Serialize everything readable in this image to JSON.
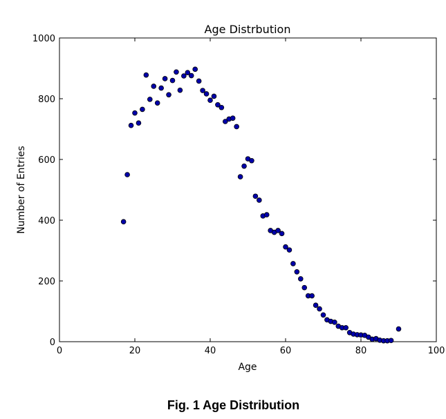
{
  "caption": "Fig. 1 Age Distribution",
  "chart_data": {
    "type": "scatter",
    "title": "Age Distrbution",
    "xlabel": "Age",
    "ylabel": "Number of Entries",
    "xlim": [
      0,
      100
    ],
    "ylim": [
      0,
      1000
    ],
    "x_ticks": [
      "0",
      "20",
      "40",
      "60",
      "80",
      "100"
    ],
    "y_ticks": [
      "0",
      "200",
      "400",
      "600",
      "800",
      "1000"
    ],
    "grid": false,
    "marker_color": "#00008b",
    "marker_fill": "#0000aa",
    "x": [
      17,
      18,
      19,
      20,
      21,
      22,
      23,
      24,
      25,
      26,
      27,
      28,
      29,
      30,
      31,
      32,
      33,
      34,
      35,
      36,
      37,
      38,
      39,
      40,
      41,
      42,
      43,
      44,
      45,
      46,
      47,
      48,
      49,
      50,
      51,
      52,
      53,
      54,
      55,
      56,
      57,
      58,
      59,
      60,
      61,
      62,
      63,
      64,
      65,
      66,
      67,
      68,
      69,
      70,
      71,
      72,
      73,
      74,
      75,
      76,
      77,
      78,
      79,
      80,
      81,
      82,
      83,
      84,
      85,
      86,
      87,
      88,
      90
    ],
    "y": [
      395,
      550,
      712,
      753,
      720,
      765,
      878,
      798,
      841,
      786,
      835,
      866,
      813,
      860,
      888,
      828,
      875,
      886,
      876,
      897,
      858,
      827,
      816,
      795,
      808,
      780,
      771,
      725,
      733,
      736,
      708,
      543,
      578,
      602,
      596,
      479,
      466,
      414,
      418,
      366,
      360,
      366,
      356,
      312,
      302,
      257,
      230,
      207,
      178,
      151,
      151,
      120,
      108,
      88,
      72,
      67,
      64,
      51,
      46,
      46,
      30,
      25,
      23,
      22,
      21,
      15,
      8,
      10,
      5,
      3,
      3,
      4,
      42
    ]
  }
}
